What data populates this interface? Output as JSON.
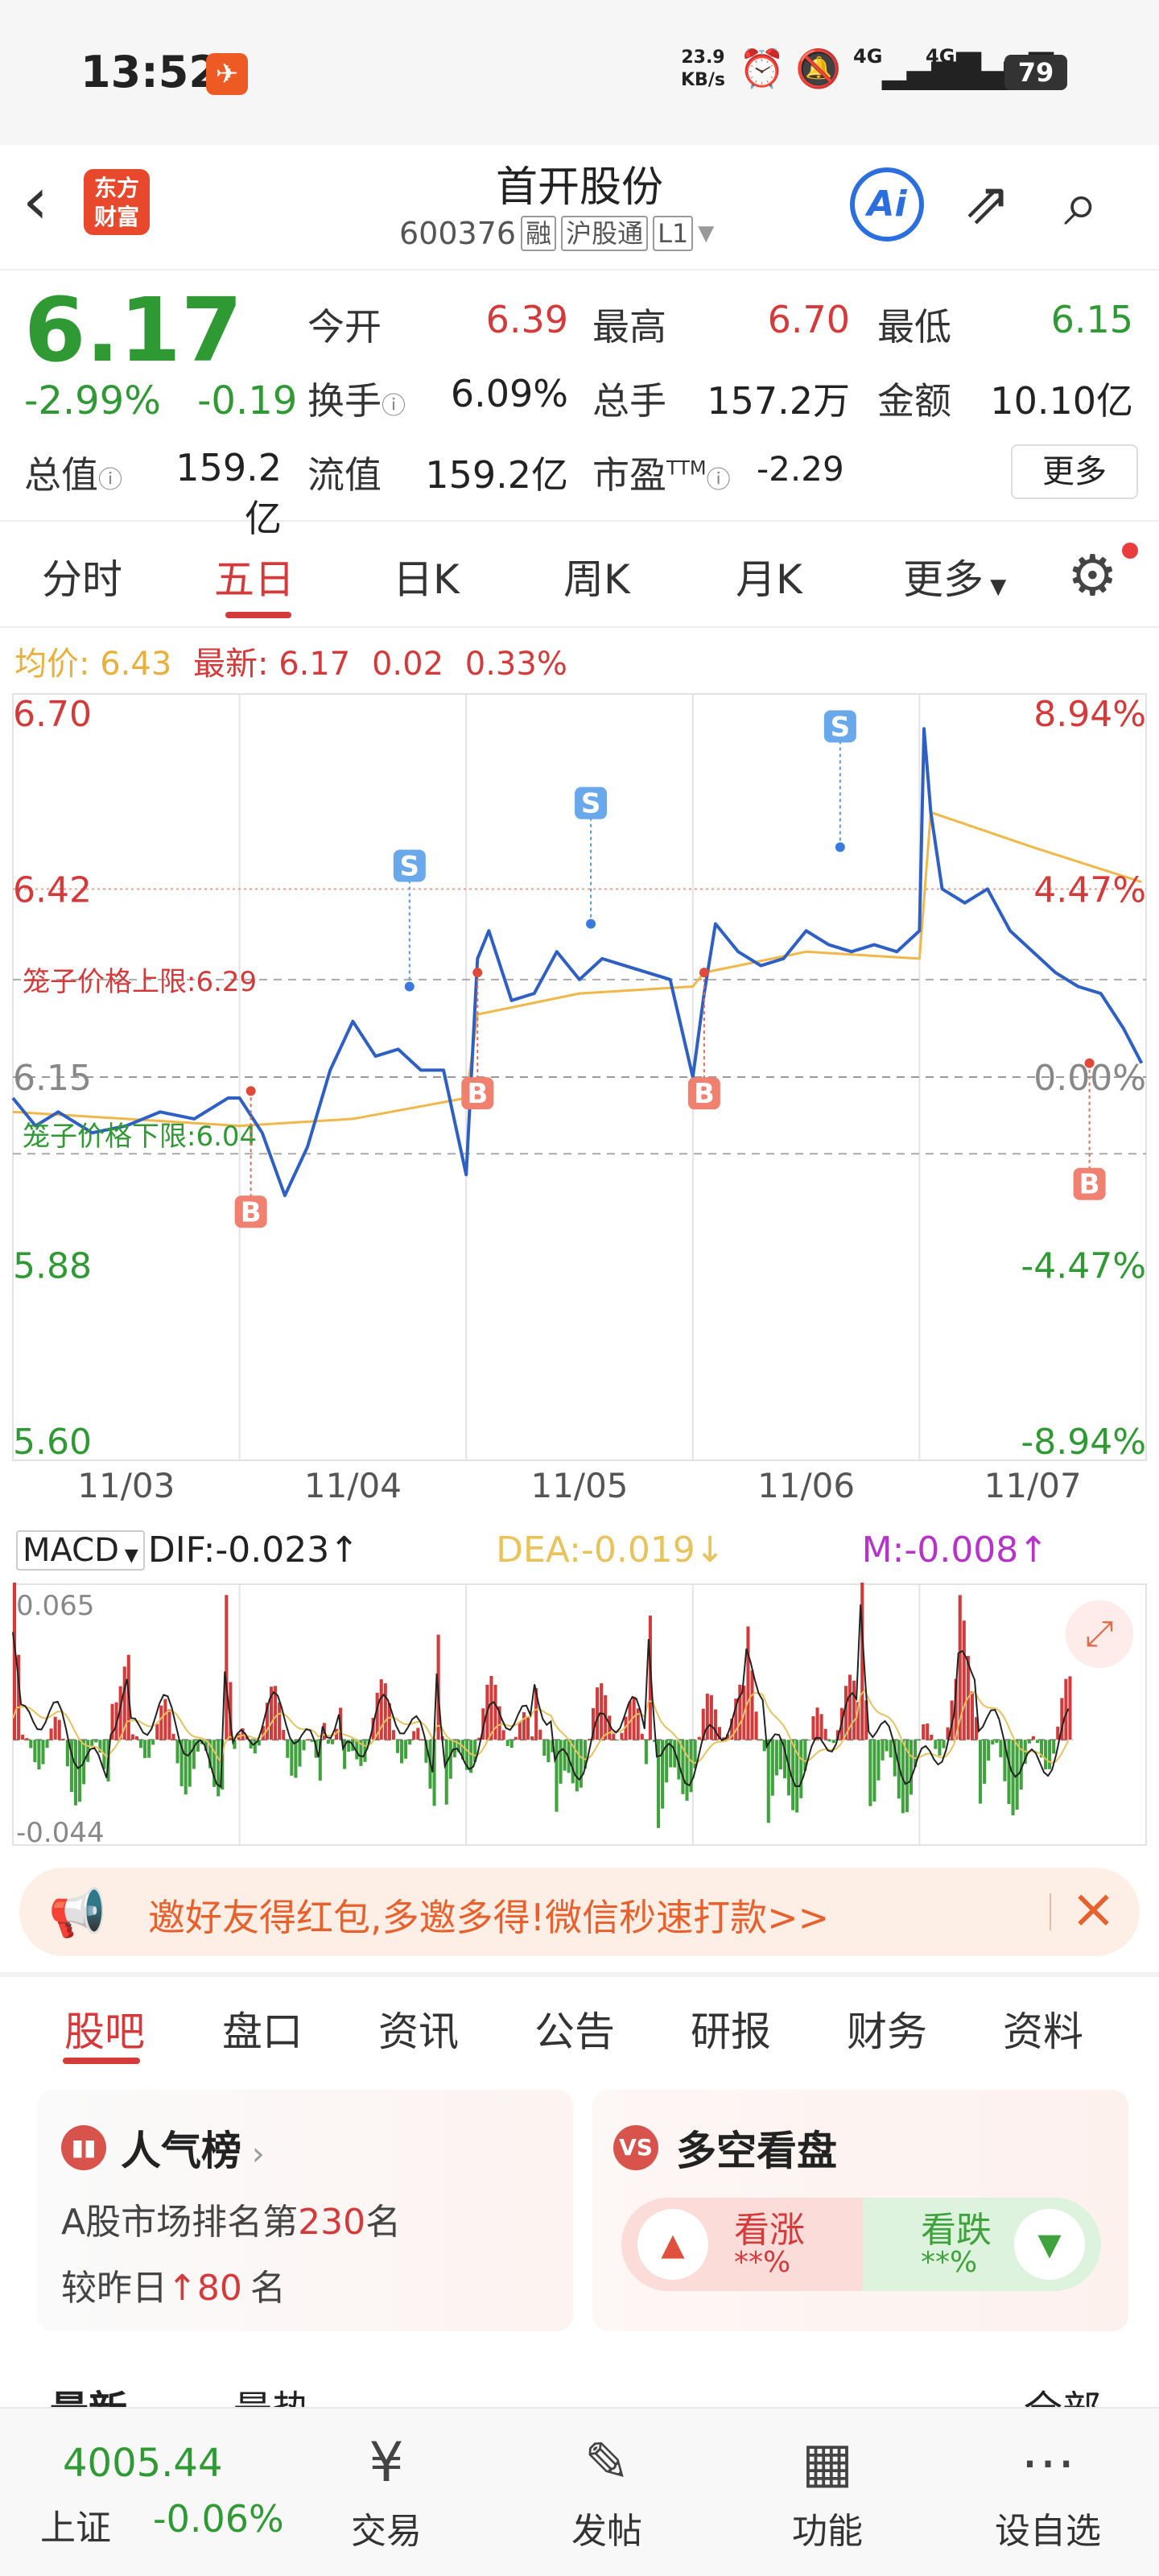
{
  "status": {
    "time": "13:52",
    "speed_value": "23.9",
    "speed_unit": "KB/s",
    "net1": "4G",
    "net2": "4G",
    "battery": "79"
  },
  "header": {
    "logo_line1": "东方",
    "logo_line2": "财富",
    "stock_name": "首开股份",
    "stock_code": "600376",
    "tag_rong": "融",
    "tag_hgt": "沪股通",
    "tag_level": "L1",
    "ai_label": "Ai"
  },
  "quote": {
    "price": "6.17",
    "change_pct": "-2.99%",
    "change_amt": "-0.19",
    "open_label": "今开",
    "open": "6.39",
    "high_label": "最高",
    "high": "6.70",
    "low_label": "最低",
    "low": "6.15",
    "turnover_label": "换手",
    "turnover": "6.09%",
    "volume_label": "总手",
    "volume": "157.2万",
    "amount_label": "金额",
    "amount": "10.10亿",
    "mktcap_label": "总值",
    "mktcap": "159.2亿",
    "float_label": "流值",
    "float_cap": "159.2亿",
    "pe_label": "市盈",
    "pe_sup": "TTM",
    "pe": "-2.29",
    "more_label": "更多"
  },
  "period_tabs": [
    "分时",
    "五日",
    "日K",
    "周K",
    "月K",
    "更多"
  ],
  "chart_info": {
    "avg_label": "均价:",
    "avg_value": "6.43",
    "latest_label": "最新:",
    "latest_value": "6.17",
    "latest_chg": "0.02",
    "latest_pct": "0.33%"
  },
  "chart_data": {
    "type": "line",
    "title": "",
    "y_left_ticks": [
      "6.70",
      "6.42",
      "6.15",
      "5.88",
      "5.60"
    ],
    "y_right_ticks": [
      "8.94%",
      "4.47%",
      "0.00%",
      "-4.47%",
      "-8.94%"
    ],
    "x_ticks": [
      "11/03",
      "11/04",
      "11/05",
      "11/06",
      "11/07"
    ],
    "ylim": [
      5.6,
      6.7
    ],
    "prev_close": 6.15,
    "cage_upper_label": "笼子价格上限:",
    "cage_upper": 6.29,
    "cage_lower_label": "笼子价格下限:",
    "cage_lower": 6.04,
    "series": [
      {
        "name": "最新",
        "color": "#2d5fc4",
        "x": [
          0,
          0.1,
          0.2,
          0.35,
          0.5,
          0.65,
          0.8,
          0.95,
          1.0,
          1.1,
          1.2,
          1.3,
          1.4,
          1.5,
          1.6,
          1.7,
          1.8,
          1.9,
          2.0,
          2.05,
          2.1,
          2.2,
          2.3,
          2.4,
          2.5,
          2.6,
          2.7,
          2.8,
          2.9,
          3.0,
          3.05,
          3.1,
          3.2,
          3.3,
          3.4,
          3.5,
          3.6,
          3.7,
          3.8,
          3.9,
          4.0,
          4.02,
          4.05,
          4.1,
          4.2,
          4.3,
          4.4,
          4.5,
          4.6,
          4.7,
          4.8,
          4.9,
          4.98
        ],
        "y": [
          6.12,
          6.08,
          6.1,
          6.07,
          6.08,
          6.1,
          6.09,
          6.12,
          6.12,
          6.07,
          5.98,
          6.05,
          6.16,
          6.23,
          6.18,
          6.19,
          6.16,
          6.16,
          6.01,
          6.32,
          6.36,
          6.26,
          6.27,
          6.33,
          6.29,
          6.32,
          6.31,
          6.3,
          6.29,
          6.15,
          6.27,
          6.37,
          6.33,
          6.31,
          6.32,
          6.36,
          6.34,
          6.33,
          6.34,
          6.33,
          6.36,
          6.65,
          6.53,
          6.42,
          6.4,
          6.42,
          6.36,
          6.33,
          6.3,
          6.28,
          6.27,
          6.22,
          6.17
        ]
      },
      {
        "name": "均价",
        "color": "#f0b84a",
        "x": [
          0,
          0.5,
          1.0,
          1.5,
          2.0,
          2.05,
          2.5,
          3.0,
          3.05,
          3.5,
          4.0,
          4.05,
          4.5,
          4.98
        ],
        "y": [
          6.1,
          6.09,
          6.08,
          6.09,
          6.12,
          6.24,
          6.27,
          6.28,
          6.3,
          6.33,
          6.32,
          6.53,
          6.48,
          6.43
        ]
      }
    ],
    "markers": [
      {
        "label": "B",
        "x": 1.05,
        "y": 6.13
      },
      {
        "label": "S",
        "x": 1.75,
        "y": 6.28
      },
      {
        "label": "B",
        "x": 2.05,
        "y": 6.3
      },
      {
        "label": "S",
        "x": 2.55,
        "y": 6.37
      },
      {
        "label": "B",
        "x": 3.05,
        "y": 6.3
      },
      {
        "label": "S",
        "x": 3.65,
        "y": 6.48
      },
      {
        "label": "B",
        "x": 4.75,
        "y": 6.17
      }
    ]
  },
  "macd": {
    "selector": "MACD",
    "dif": "DIF:-0.023",
    "dea": "DEA:-0.019",
    "m": "M:-0.008",
    "top_tick": "0.065",
    "bottom_tick": "-0.044",
    "ylim": [
      -0.044,
      0.065
    ],
    "colors": {
      "dif": "#222222",
      "dea": "#e8c25a",
      "up": "#d43a3a",
      "down": "#3fa23c"
    }
  },
  "banner": {
    "text": "邀好友得红包,多邀多得!微信秒速打款>>"
  },
  "content_tabs": [
    "股吧",
    "盘口",
    "资讯",
    "公告",
    "研报",
    "财务",
    "资料"
  ],
  "popularity": {
    "title": "人气榜",
    "rank_prefix": "A股市场排名第",
    "rank": "230",
    "rank_suffix": "名",
    "delta_prefix": "较昨日",
    "delta": "80",
    "delta_suffix": "名"
  },
  "sentiment": {
    "title": "多空看盘",
    "up_label": "看涨",
    "up_value": "**%",
    "down_label": "看跌",
    "down_value": "**%"
  },
  "partial_row": {
    "left1": "最新",
    "left2": "最热",
    "right": "全部"
  },
  "bottom_nav": {
    "index_value": "4005.44",
    "index_name": "上证",
    "index_change": "-0.06%",
    "items": [
      "交易",
      "发帖",
      "功能",
      "设自选"
    ]
  }
}
